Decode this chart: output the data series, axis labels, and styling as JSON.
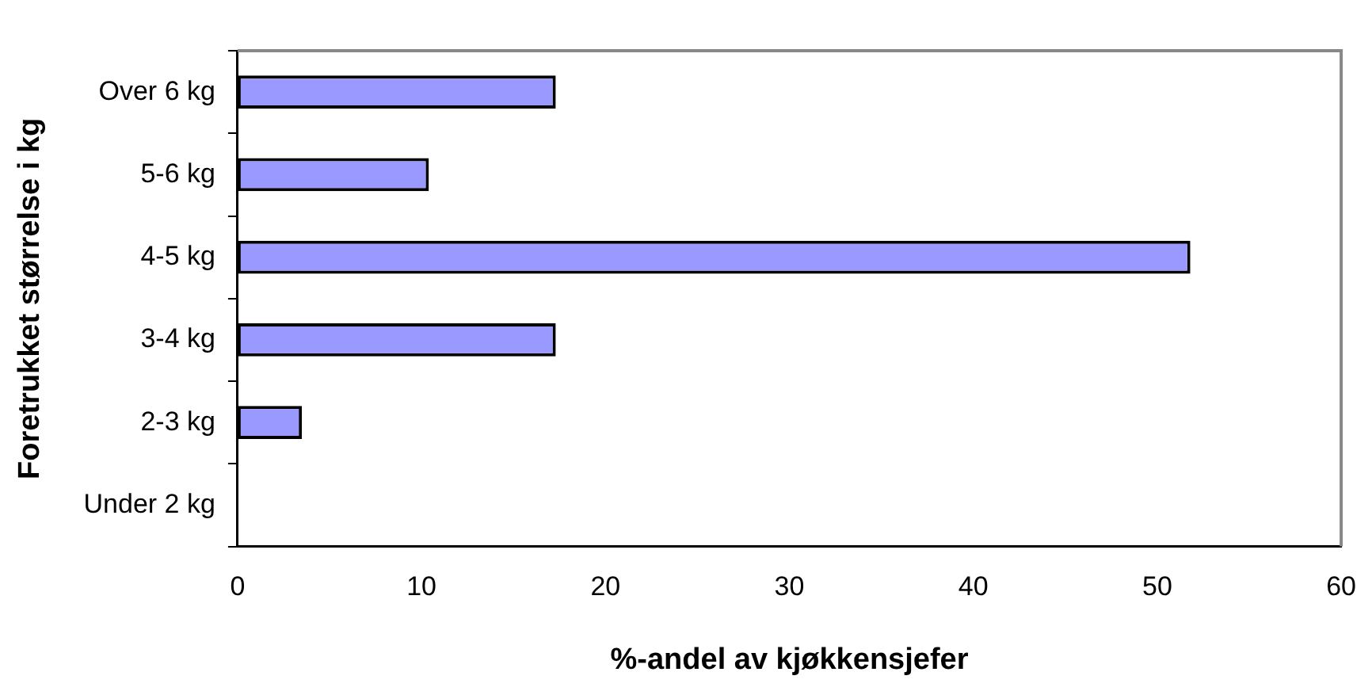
{
  "chart_data": {
    "type": "bar",
    "orientation": "horizontal",
    "xlabel": "%-andel av kjøkkensjefer",
    "ylabel": "Foretrukket størrelse i kg",
    "categories": [
      "Over 6 kg",
      "5-6 kg",
      "4-5 kg",
      "3-4 kg",
      "2-3 kg",
      "Under 2 kg"
    ],
    "values": [
      17.3,
      10.4,
      51.8,
      17.3,
      3.5,
      0
    ],
    "color": "#9999ff",
    "xlim": [
      0,
      60
    ],
    "xticks": [
      0,
      10,
      20,
      30,
      40,
      50,
      60
    ],
    "grid": false,
    "legend": false
  }
}
